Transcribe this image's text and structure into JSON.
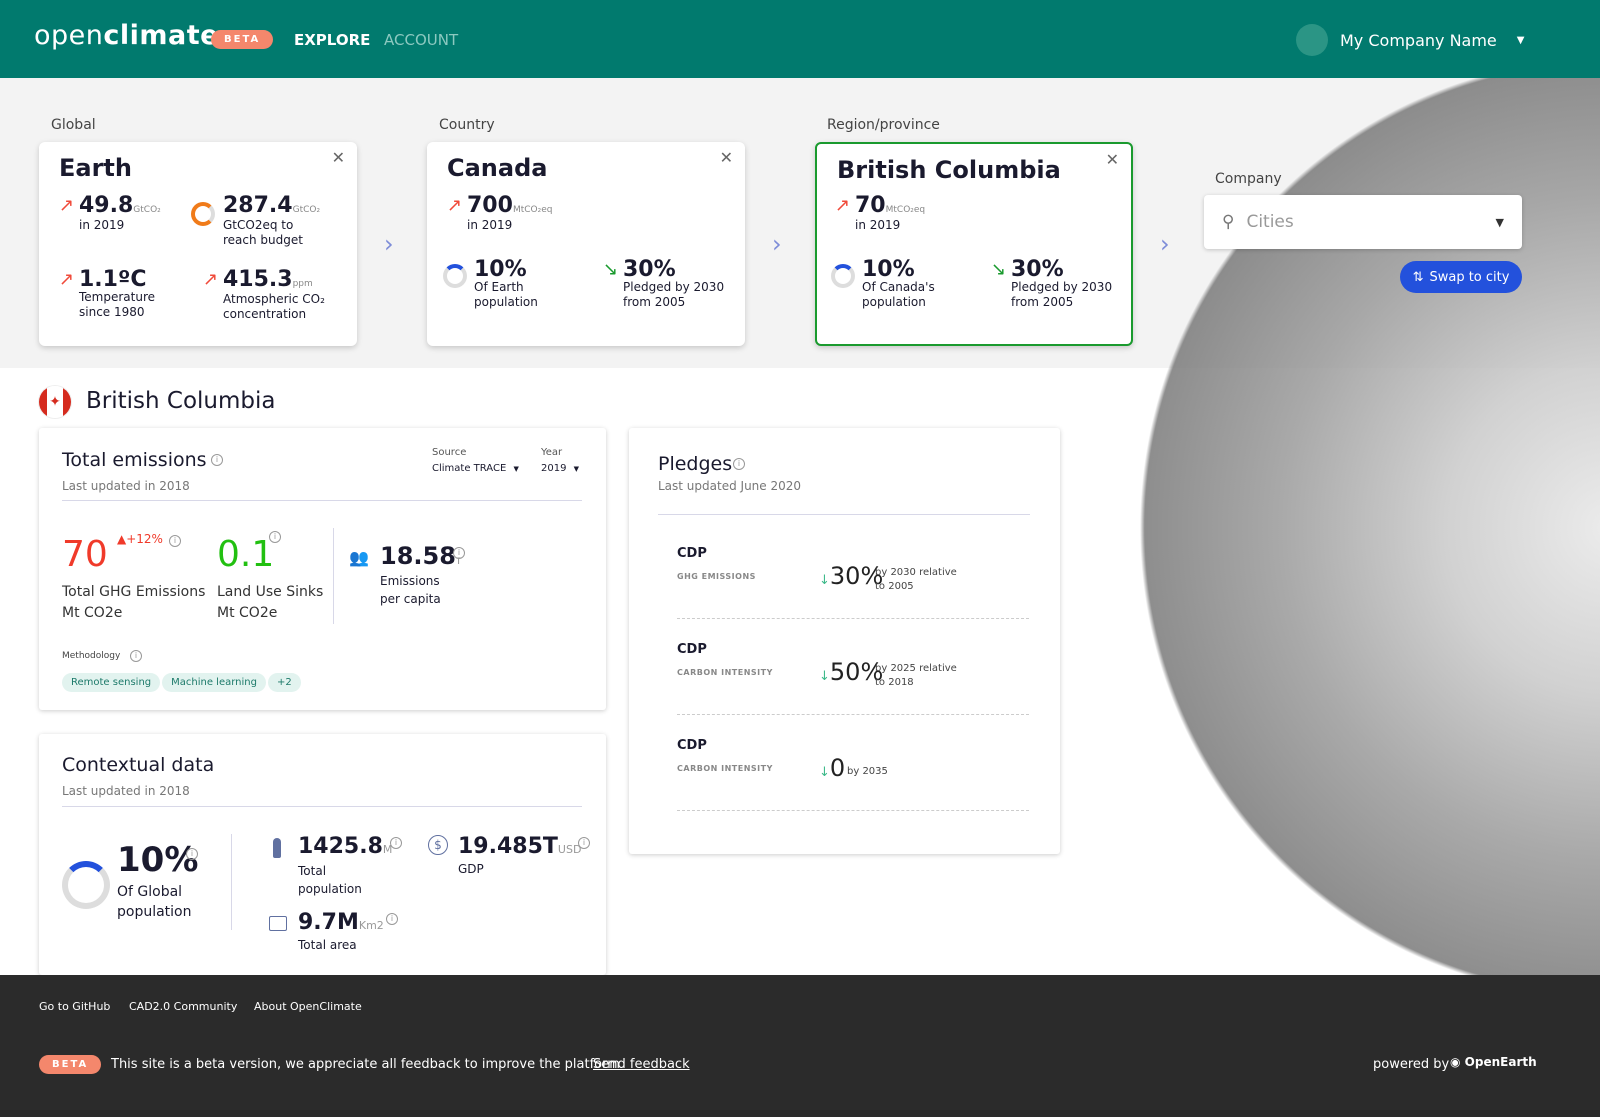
{
  "header": {
    "logo_light": "open",
    "logo_bold": "climate",
    "beta": "BETA",
    "nav": [
      "EXPLORE",
      "ACCOUNT"
    ],
    "company": "My Company Name"
  },
  "levels": {
    "global": {
      "label": "Global",
      "title": "Earth",
      "s1v": "49.8",
      "s1u": "GtCO₂",
      "s1d": "in 2019",
      "s2v": "287.4",
      "s2u": "GtCO₂",
      "s2d1": "GtCO2eq to",
      "s2d2": "reach budget",
      "s3v": "1.1ºC",
      "s3d1": "Temperature",
      "s3d2": "since 1980",
      "s4v": "415.3",
      "s4u": "ppm",
      "s4d1": "Atmospheric CO₂",
      "s4d2": "concentration"
    },
    "country": {
      "label": "Country",
      "title": "Canada",
      "s1v": "700",
      "s1u": "MtCO₂eq",
      "s1d": "in 2019",
      "s2v": "10%",
      "s2d1": "Of Earth",
      "s2d2": "population",
      "s3v": "30%",
      "s3d1": "Pledged by 2030",
      "s3d2": "from 2005"
    },
    "region": {
      "label": "Region/province",
      "title": "British Columbia",
      "s1v": "70",
      "s1u": "MtCO₂eq",
      "s1d": "in 2019",
      "s2v": "10%",
      "s2d1": "Of Canada's",
      "s2d2": "population",
      "s3v": "30%",
      "s3d1": "Pledged by 2030",
      "s3d2": "from 2005"
    },
    "company": {
      "label": "Company",
      "placeholder": "Cities",
      "swap": "Swap to city"
    }
  },
  "region_title": "British Columbia",
  "emissions": {
    "title": "Total emissions",
    "updated": "Last updated in 2018",
    "source_label": "Source",
    "source": "Climate TRACE",
    "year_label": "Year",
    "year": "2019",
    "total": "70",
    "change": "+12%",
    "total_l1": "Total GHG Emissions",
    "total_l2": "Mt CO2e",
    "sinks": "0.1",
    "sinks_l1": "Land Use Sinks",
    "sinks_l2": "Mt CO2e",
    "percap": "18.58",
    "percap_u": "T",
    "percap_l1": "Emissions",
    "percap_l2": "per capita",
    "method_label": "Methodology",
    "tags": [
      "Remote sensing",
      "Machine learning",
      "+2"
    ]
  },
  "context": {
    "title": "Contextual data",
    "updated": "Last updated in 2018",
    "pop_pct": "10%",
    "pop_pct_l1": "Of Global",
    "pop_pct_l2": "population",
    "pop": "1425.8",
    "pop_u": "M",
    "pop_l1": "Total",
    "pop_l2": "population",
    "gdp": "19.485T",
    "gdp_u": "USD",
    "gdp_l": "GDP",
    "area": "9.7M",
    "area_u": "Km2",
    "area_l": "Total area"
  },
  "pledges": {
    "title": "Pledges",
    "updated": "Last updated June 2020",
    "items": [
      {
        "name": "CDP",
        "type": "GHG EMISSIONS",
        "value": "30%",
        "desc1": "by 2030 relative",
        "desc2": "to 2005"
      },
      {
        "name": "CDP",
        "type": "CARBON INTENSITY",
        "value": "50%",
        "desc1": "by 2025 relative",
        "desc2": "to 2018"
      },
      {
        "name": "CDP",
        "type": "CARBON INTENSITY",
        "value": "0",
        "desc1": "by 2035",
        "desc2": ""
      }
    ]
  },
  "footer": {
    "links": [
      "Go to GitHub",
      "CAD2.0 Community",
      "About OpenClimate"
    ],
    "beta": "BETA",
    "notice": "This site is a beta version, we appreciate all feedback to improve the platform",
    "feedback": "Send feedback",
    "powered": "powered by",
    "brand": "OpenEarth"
  }
}
